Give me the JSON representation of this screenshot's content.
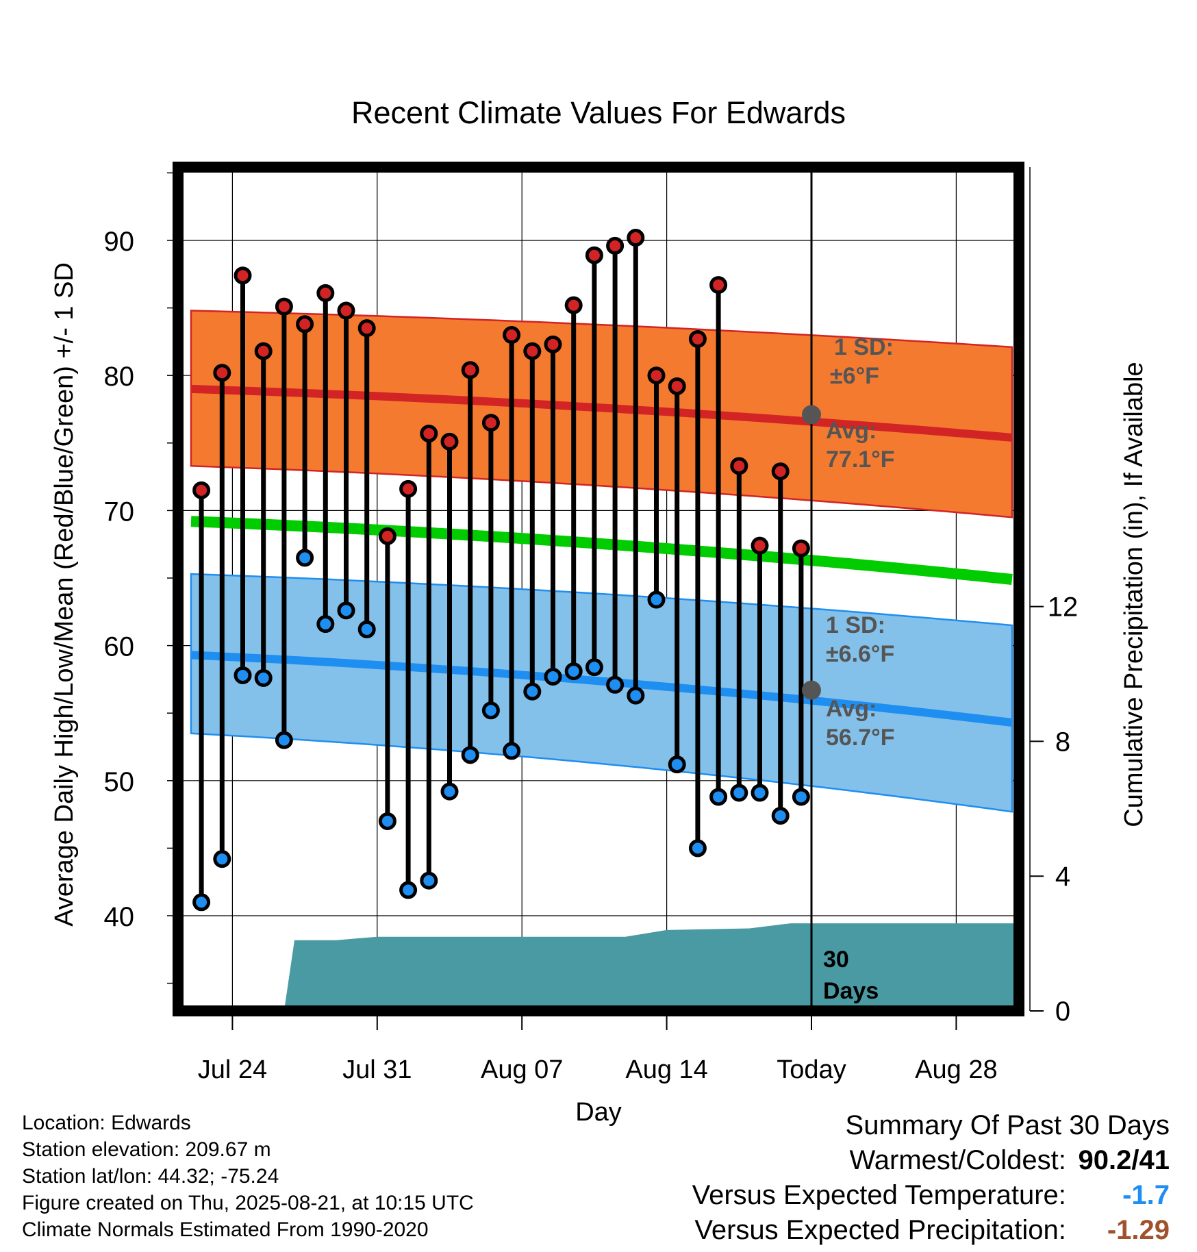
{
  "chart_data": {
    "type": "line",
    "title": "Recent Climate Values For Edwards",
    "xlabel": "Day",
    "ylabel": "Average Daily High/Low/Mean (Red/Blue/Green) +/- 1 SD",
    "y2label": "Cumulative Precipitation (in), If Available",
    "ylim": [
      33.5,
      95
    ],
    "y2lim": [
      0,
      19
    ],
    "y_ticks": [
      40,
      50,
      60,
      70,
      80,
      90
    ],
    "y2_ticks": [
      0,
      4,
      8,
      12
    ],
    "x_ticks": [
      {
        "label": "Jul 24",
        "day": 2
      },
      {
        "label": "Jul 31",
        "day": 9
      },
      {
        "label": "Aug 07",
        "day": 16
      },
      {
        "label": "Aug 14",
        "day": 23
      },
      {
        "label": "Today",
        "day": 30
      },
      {
        "label": "Aug 28",
        "day": 37
      }
    ],
    "x_range": [
      "Jul 22",
      "Aug 31"
    ],
    "today": "Aug 21",
    "grid": true,
    "highs": [
      71.5,
      80.2,
      87.4,
      81.8,
      85.1,
      83.8,
      86.1,
      84.8,
      83.5,
      68.1,
      71.6,
      75.7,
      75.1,
      80.4,
      76.5,
      83.0,
      81.8,
      82.3,
      85.2,
      88.9,
      89.6,
      90.2,
      80.0,
      79.2,
      82.7,
      86.7,
      73.3,
      67.4,
      72.9,
      67.2
    ],
    "lows": [
      41.0,
      44.2,
      57.8,
      57.6,
      53.0,
      66.5,
      61.6,
      62.6,
      61.2,
      47.0,
      41.9,
      42.6,
      49.2,
      51.9,
      55.2,
      52.2,
      56.6,
      57.7,
      58.1,
      58.4,
      57.1,
      56.3,
      63.4,
      51.2,
      45.0,
      48.8,
      49.1,
      49.1,
      47.4,
      48.8
    ],
    "normal_high": {
      "start": 79.0,
      "today": 77.1,
      "end": 75.4,
      "label_avg": "Avg:",
      "value": "77.1°F",
      "sd_label": "1 SD:",
      "sd": "±6°F",
      "band_start": [
        73.3,
        84.8
      ],
      "band_end": [
        69.5,
        82.1
      ]
    },
    "normal_low": {
      "start": 59.3,
      "today": 56.7,
      "end": 54.3,
      "label_avg": "Avg:",
      "value": "56.7°F",
      "sd_label": "1 SD:",
      "sd": "±6.6°F",
      "band_start": [
        53.5,
        65.3
      ],
      "band_end": [
        47.7,
        61.5
      ]
    },
    "normal_mean": {
      "start": 69.2,
      "end": 64.9
    },
    "precip_cumulative": [
      {
        "day": 4.5,
        "value": 0
      },
      {
        "day": 5,
        "value": 2.1
      },
      {
        "day": 7,
        "value": 2.1
      },
      {
        "day": 9,
        "value": 2.2
      },
      {
        "day": 21,
        "value": 2.2
      },
      {
        "day": 23,
        "value": 2.4
      },
      {
        "day": 27,
        "value": 2.45
      },
      {
        "day": 29,
        "value": 2.6
      },
      {
        "day": 40,
        "value": 2.6
      }
    ],
    "precip_label": [
      "30",
      "Days"
    ],
    "colors": {
      "high_band": "#f47a30",
      "high_line": "#d22424",
      "low_band": "#84c1ea",
      "low_line": "#1f8ef1",
      "mean_line": "#00cc00",
      "precip": "#4a9aa3",
      "high_dot": "#d22424",
      "low_dot": "#1f8ef1",
      "today_dot": "#555555",
      "annot": "#555555"
    }
  },
  "footer": {
    "location": "Location: Edwards",
    "elevation": "Station elevation: 209.67 m",
    "latlon": "Station lat/lon: 44.32; -75.24",
    "created": "Figure created on Thu, 2025-08-21, at 10:15 UTC",
    "normals": "Climate Normals Estimated From 1990-2020"
  },
  "summary": {
    "title": "Summary Of Past 30 Days",
    "warm_label": "Warmest/Coldest:",
    "warm_value": "90.2/41",
    "temp_label": "Versus Expected Temperature:",
    "temp_value": "-1.7",
    "temp_color": "#1f8ef1",
    "precip_label": "Versus Expected Precipitation:",
    "precip_value": "-1.29",
    "precip_color": "#a0522d"
  }
}
